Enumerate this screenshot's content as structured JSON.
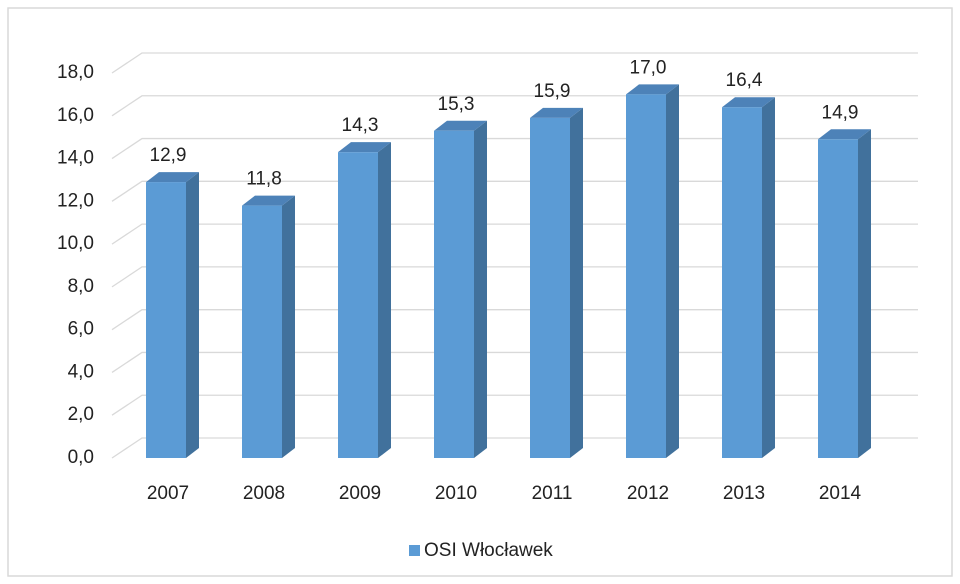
{
  "chart_data": {
    "type": "bar3d",
    "categories": [
      "2007",
      "2008",
      "2009",
      "2010",
      "2011",
      "2012",
      "2013",
      "2014"
    ],
    "values": [
      12.9,
      11.8,
      14.3,
      15.3,
      15.9,
      17.0,
      16.4,
      14.9
    ],
    "value_labels": [
      "12,9",
      "11,8",
      "14,3",
      "15,3",
      "15,9",
      "17,0",
      "16,4",
      "14,9"
    ],
    "series_name": "OSI Włocławek",
    "color": "#5b9bd5",
    "ylim": [
      0,
      18
    ],
    "yticks": [
      {
        "value": 0,
        "label": "0,0"
      },
      {
        "value": 2,
        "label": "2,0"
      },
      {
        "value": 4,
        "label": "4,0"
      },
      {
        "value": 6,
        "label": "6,0"
      },
      {
        "value": 8,
        "label": "8,0"
      },
      {
        "value": 10,
        "label": "10,0"
      },
      {
        "value": 12,
        "label": "12,0"
      },
      {
        "value": 14,
        "label": "14,0"
      },
      {
        "value": 16,
        "label": "16,0"
      },
      {
        "value": 18,
        "label": "18,0"
      }
    ],
    "grid": true,
    "legend": "bottom"
  }
}
